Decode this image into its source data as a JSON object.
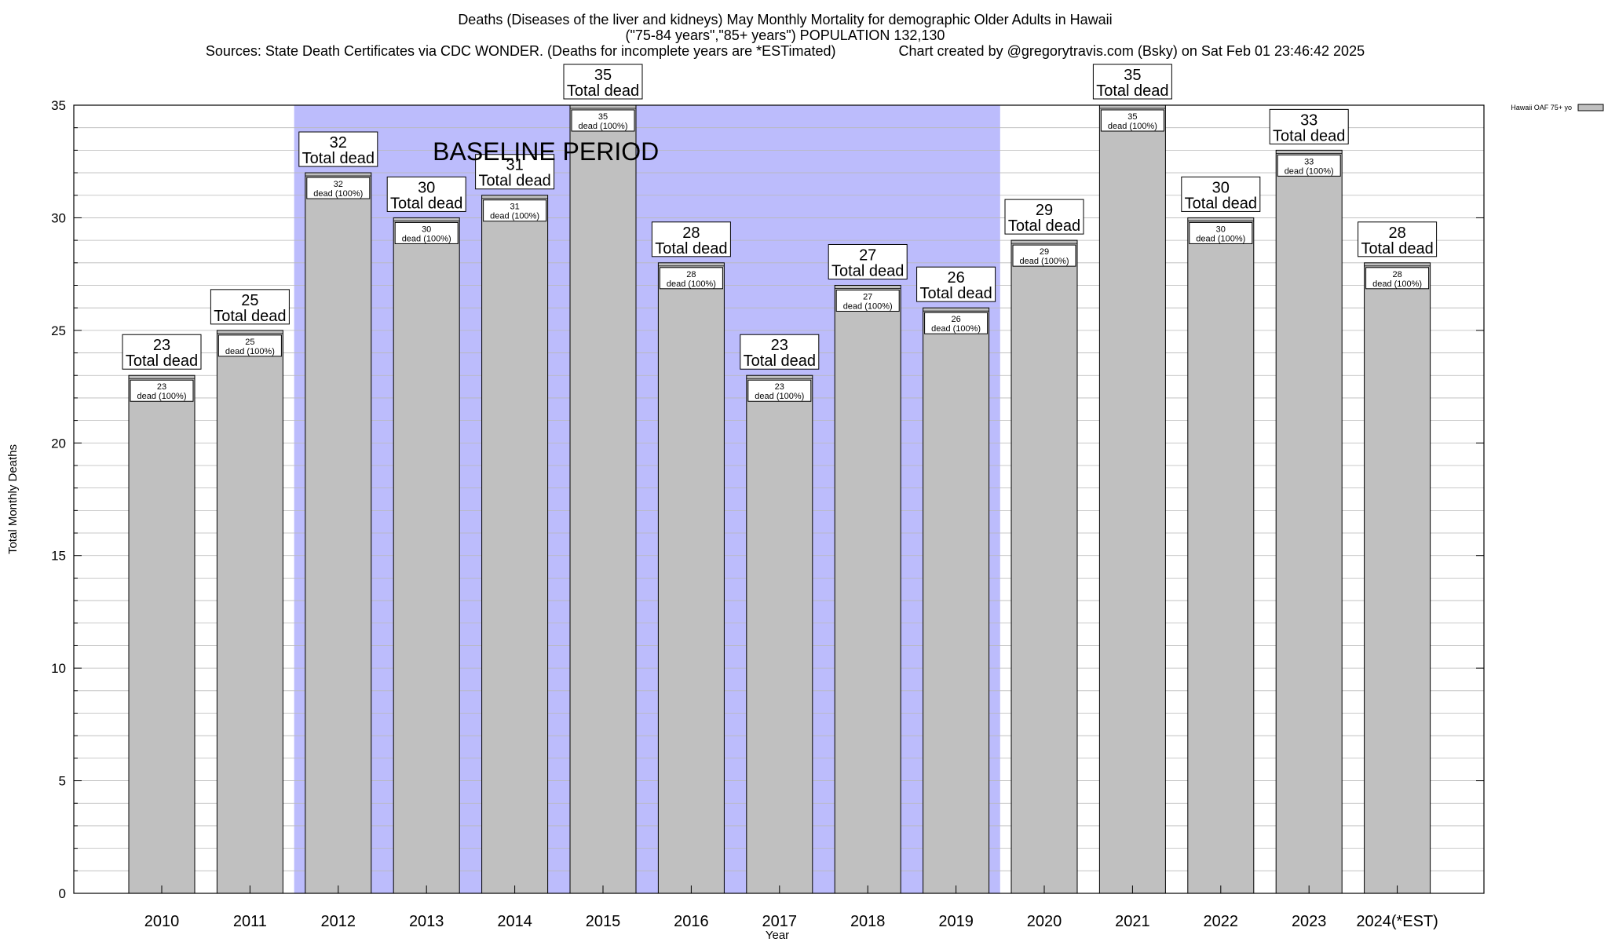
{
  "chart_data": {
    "type": "bar",
    "title_lines": [
      "Deaths (Diseases of the liver and kidneys) May Monthly Mortality for demographic Older Adults in Hawaii",
      "(\"75-84 years\",\"85+ years\") POPULATION 132,130",
      "Sources: State Death Certificates via CDC WONDER. (Deaths for incomplete years are *ESTimated)                Chart created by @gregorytravis.com (Bsky) on Sat Feb 01 23:46:42 2025"
    ],
    "xlabel": "Year",
    "ylabel": "Total Monthly Deaths",
    "ylim": [
      0,
      35
    ],
    "y_ticks": [
      0,
      5,
      10,
      15,
      20,
      25,
      30,
      35
    ],
    "y_minor_step": 1,
    "categories": [
      "2010",
      "2011",
      "2012",
      "2013",
      "2014",
      "2015",
      "2016",
      "2017",
      "2018",
      "2019",
      "2020",
      "2021",
      "2022",
      "2023",
      "2024(*EST)"
    ],
    "series": [
      {
        "name": "Hawaii OAF 75+ yo",
        "color": "#c0c0c0",
        "values": [
          23,
          25,
          32,
          30,
          31,
          35,
          28,
          23,
          27,
          26,
          29,
          35,
          30,
          33,
          28
        ]
      }
    ],
    "top_label_suffix": "Total dead",
    "inner_label_suffix": "dead (100%)",
    "baseline": {
      "label": "BASELINE PERIOD",
      "start": "2012",
      "end": "2019",
      "color": "#bcbcfc"
    },
    "legend_position": "top-right",
    "grid": true
  }
}
